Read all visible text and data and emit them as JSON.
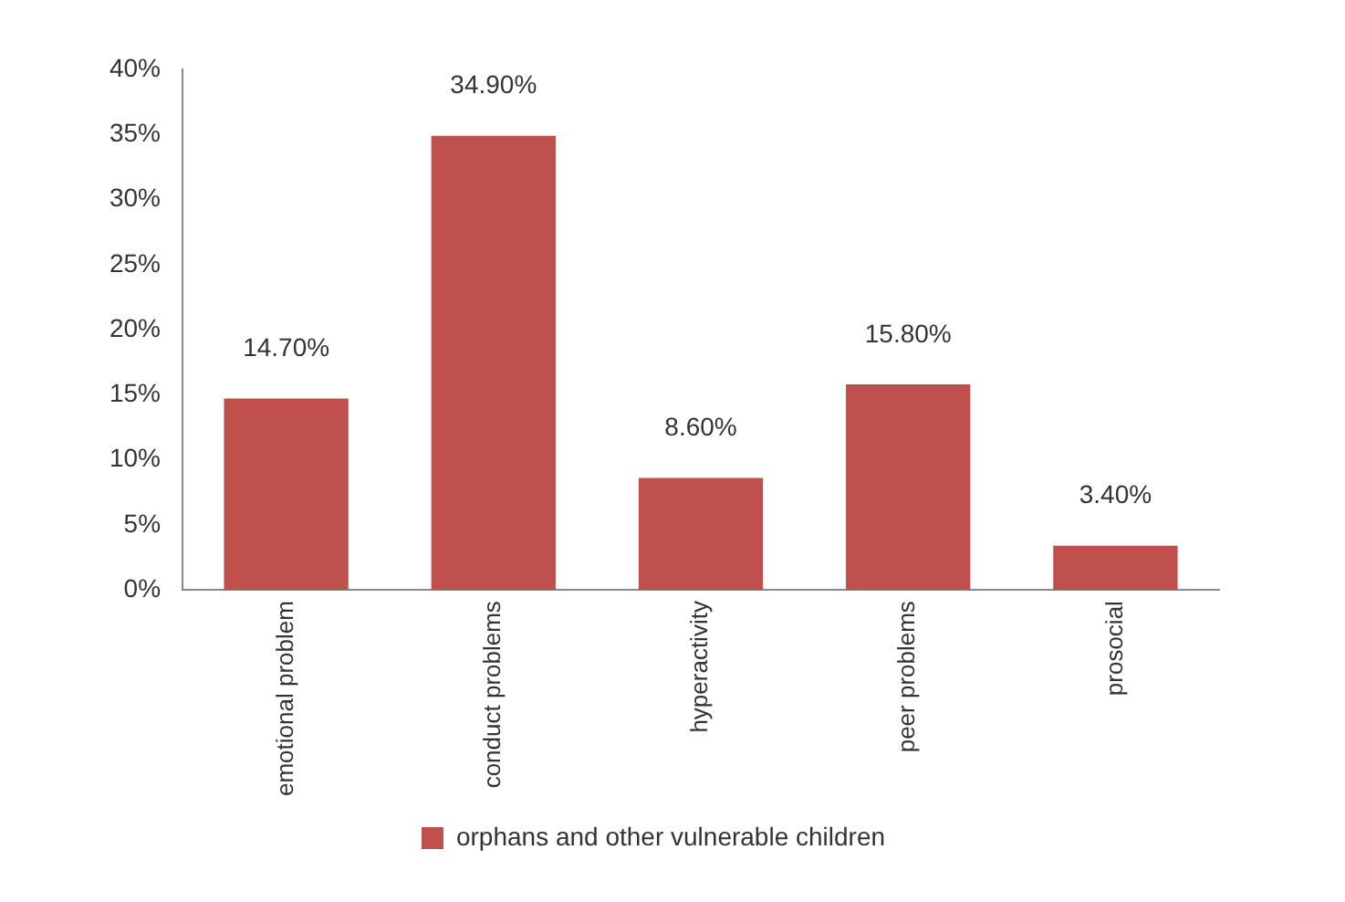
{
  "chart_data": {
    "type": "bar",
    "categories": [
      "emotional problem",
      "conduct problems",
      "hyperactivity",
      "peer problems",
      "prosocial"
    ],
    "series": [
      {
        "name": "orphans and other vulnerable children",
        "color": "#c0504d",
        "values": [
          14.7,
          34.9,
          8.6,
          15.8,
          3.4
        ],
        "value_labels": [
          "14.70%",
          "34.90%",
          "8.60%",
          "15.80%",
          "3.40%"
        ]
      }
    ],
    "ylim": [
      0,
      40
    ],
    "yticks": [
      {
        "value": 0,
        "label": "0%"
      },
      {
        "value": 5,
        "label": "5%"
      },
      {
        "value": 10,
        "label": "10%"
      },
      {
        "value": 15,
        "label": "15%"
      },
      {
        "value": 20,
        "label": "20%"
      },
      {
        "value": 25,
        "label": "25%"
      },
      {
        "value": 30,
        "label": "30%"
      },
      {
        "value": 35,
        "label": "35%"
      },
      {
        "value": 40,
        "label": "40%"
      }
    ],
    "grid": false,
    "legend": "bottom"
  }
}
